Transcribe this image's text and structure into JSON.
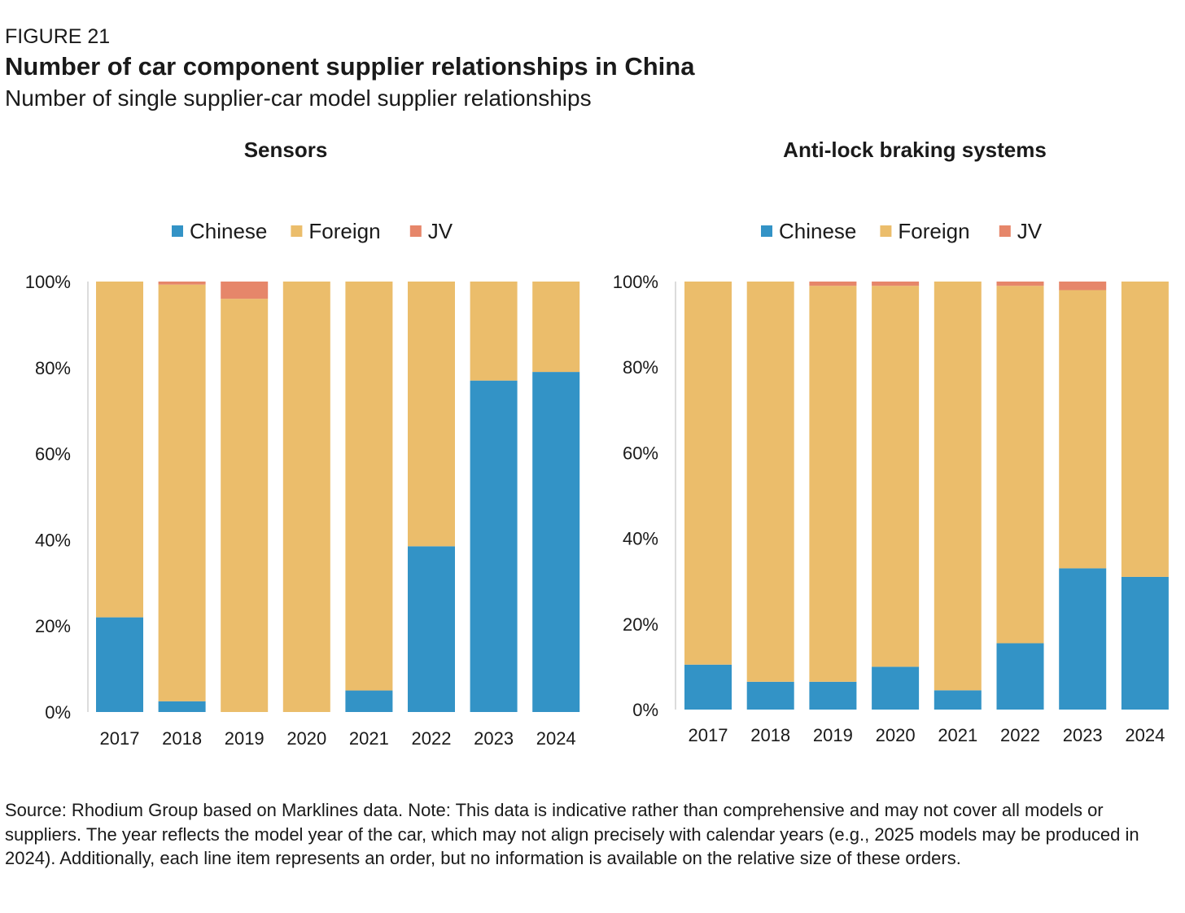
{
  "figure": {
    "label": "FIGURE 21",
    "title": "Number of car component supplier relationships in China",
    "subtitle": "Number of single supplier-car model supplier relationships"
  },
  "legend": [
    {
      "name": "Chinese",
      "color": "#3393c6"
    },
    {
      "name": "Foreign",
      "color": "#ebbd6b"
    },
    {
      "name": "JV",
      "color": "#e6866a"
    }
  ],
  "chart_data": [
    {
      "type": "bar",
      "stacked": true,
      "title": "Sensors",
      "categories": [
        "2017",
        "2018",
        "2019",
        "2020",
        "2021",
        "2022",
        "2023",
        "2024"
      ],
      "ylim": [
        0,
        100
      ],
      "yticks": [
        "0%",
        "20%",
        "40%",
        "60%",
        "80%",
        "100%"
      ],
      "series": [
        {
          "name": "Chinese",
          "color": "#3393c6",
          "values": [
            22,
            2.5,
            0,
            0,
            5,
            38.5,
            77,
            79
          ]
        },
        {
          "name": "Foreign",
          "color": "#ebbd6b",
          "values": [
            78,
            96.8,
            96,
            100,
            95,
            61.5,
            23,
            21
          ]
        },
        {
          "name": "JV",
          "color": "#e6866a",
          "values": [
            0,
            0.7,
            4,
            0,
            0,
            0,
            0,
            0
          ]
        }
      ],
      "legend_position": "top-center",
      "grid": false
    },
    {
      "type": "bar",
      "stacked": true,
      "title": "Anti-lock braking systems",
      "categories": [
        "2017",
        "2018",
        "2019",
        "2020",
        "2021",
        "2022",
        "2023",
        "2024"
      ],
      "ylim": [
        0,
        100
      ],
      "yticks": [
        "0%",
        "20%",
        "40%",
        "60%",
        "80%",
        "100%"
      ],
      "series": [
        {
          "name": "Chinese",
          "color": "#3393c6",
          "values": [
            10.5,
            6.5,
            6.5,
            10,
            4.5,
            15.5,
            33,
            31
          ]
        },
        {
          "name": "Foreign",
          "color": "#ebbd6b",
          "values": [
            89.5,
            93.5,
            92.5,
            89,
            95.5,
            83.5,
            65,
            69
          ]
        },
        {
          "name": "JV",
          "color": "#e6866a",
          "values": [
            0,
            0,
            1,
            1,
            0,
            1,
            2,
            0
          ]
        }
      ],
      "legend_position": "top-center",
      "grid": false
    }
  ],
  "source": "Source: Rhodium Group based on Marklines data. Note: This data is indicative rather than comprehensive and may not cover all models or suppliers. The year reflects the model year of the car, which may not align precisely with calendar years (e.g., 2025 models may be produced in 2024). Additionally, each line item represents an order, but no information is available on the relative size of these orders."
}
